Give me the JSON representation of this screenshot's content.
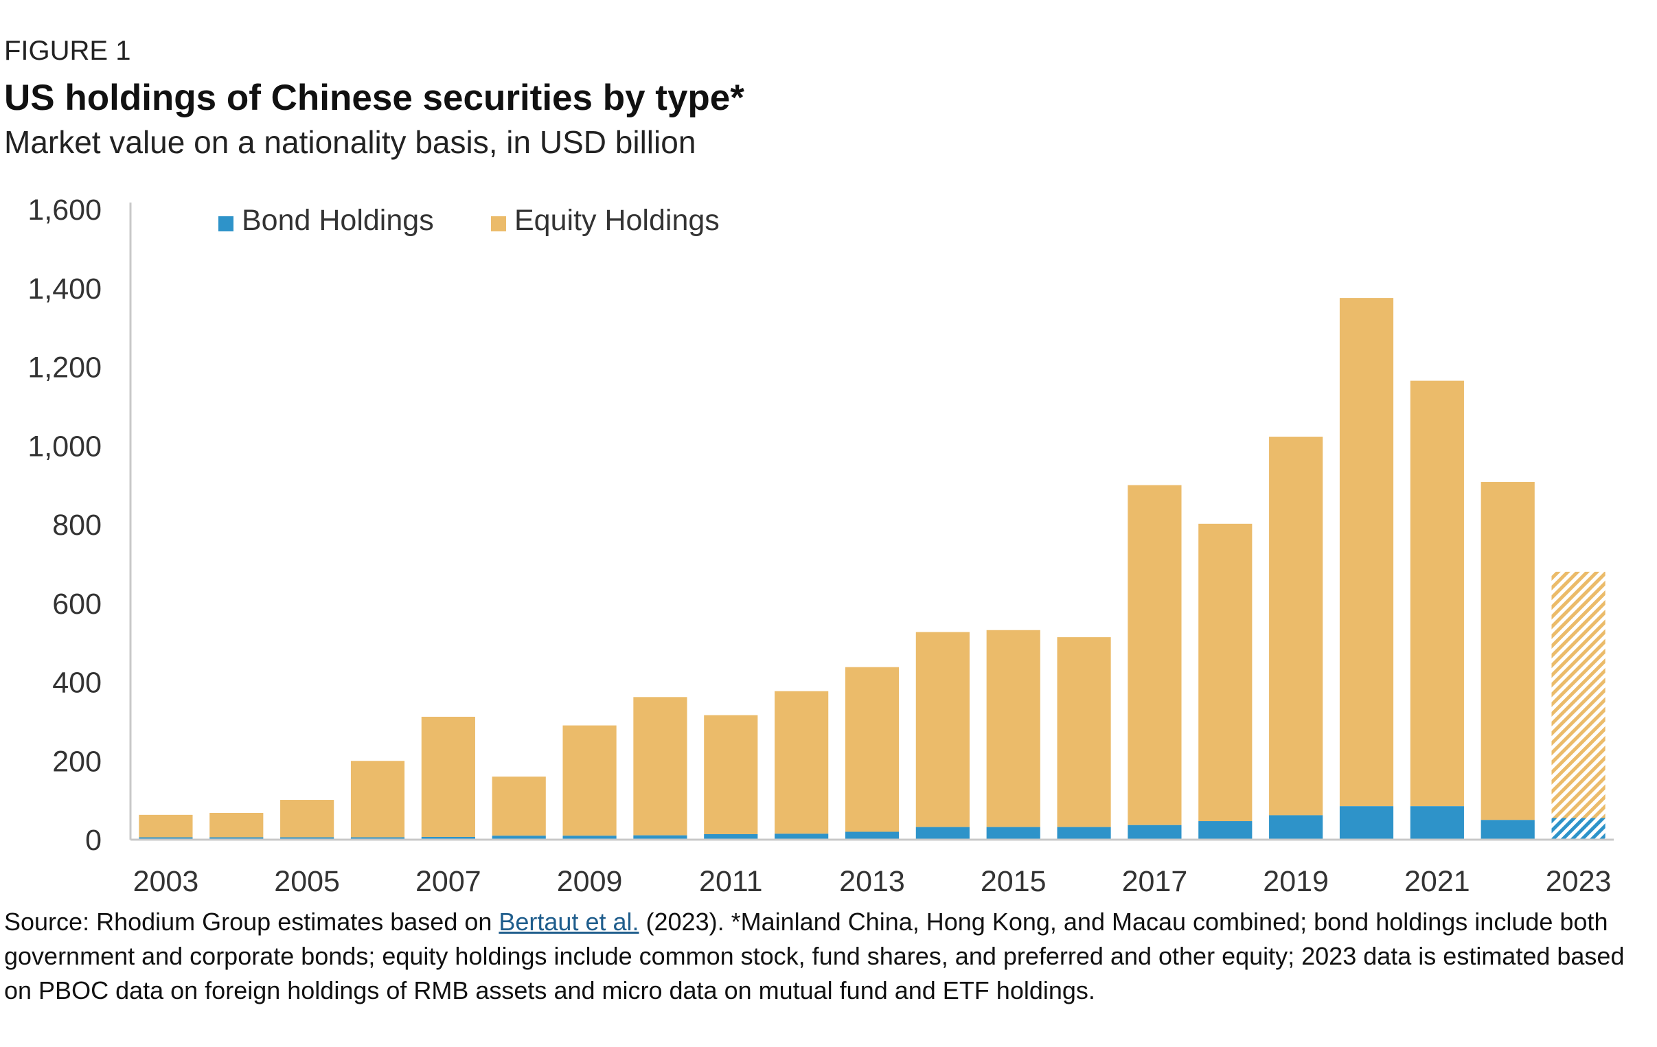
{
  "header": {
    "figure_label": "FIGURE 1",
    "title": "US holdings of Chinese securities by type*",
    "subtitle": "Market value on a nationality basis, in USD billion"
  },
  "colors": {
    "bond": "#2e93c9",
    "equity": "#ebbb6a",
    "axis": "#c8c8c8"
  },
  "chart_data": {
    "type": "bar",
    "stacked": true,
    "title": "US holdings of Chinese securities by type*",
    "subtitle": "Market value on a nationality basis, in USD billion",
    "xlabel": "",
    "ylabel": "",
    "ylim": [
      0,
      1600
    ],
    "yticks": [
      "0",
      "200",
      "400",
      "600",
      "800",
      "1,000",
      "1,200",
      "1,400",
      "1,600"
    ],
    "ytick_values": [
      0,
      200,
      400,
      600,
      800,
      1000,
      1200,
      1400,
      1600
    ],
    "categories": [
      "2003",
      "2004",
      "2005",
      "2006",
      "2007",
      "2008",
      "2009",
      "2010",
      "2011",
      "2012",
      "2013",
      "2014",
      "2015",
      "2016",
      "2017",
      "2018",
      "2019",
      "2020",
      "2021",
      "2022",
      "2023"
    ],
    "xtick_labels": [
      "2003",
      "2005",
      "2007",
      "2009",
      "2011",
      "2013",
      "2015",
      "2017",
      "2019",
      "2021",
      "2023"
    ],
    "series": [
      {
        "name": "Bond Holdings",
        "values": [
          6,
          6,
          6,
          6,
          7,
          10,
          10,
          11,
          14,
          15,
          20,
          32,
          32,
          32,
          37,
          47,
          62,
          85,
          85,
          50,
          55
        ]
      },
      {
        "name": "Equity Holdings",
        "values": [
          57,
          62,
          95,
          194,
          305,
          150,
          280,
          351,
          302,
          362,
          418,
          495,
          500,
          482,
          863,
          755,
          961,
          1290,
          1080,
          858,
          625
        ]
      }
    ],
    "estimated_categories": [
      "2023"
    ],
    "grid": false,
    "legend_position": "top-left"
  },
  "footer": {
    "source_prefix": "Source: Rhodium Group estimates based on ",
    "source_link": "Bertaut et al.",
    "source_suffix": " (2023). *Mainland China, Hong Kong, and Macau combined; bond holdings include both government and corporate bonds; equity holdings include common stock, fund shares, and preferred and other equity; 2023 data is estimated based on PBOC data on foreign holdings of RMB assets and micro data on mutual fund and ETF holdings."
  }
}
